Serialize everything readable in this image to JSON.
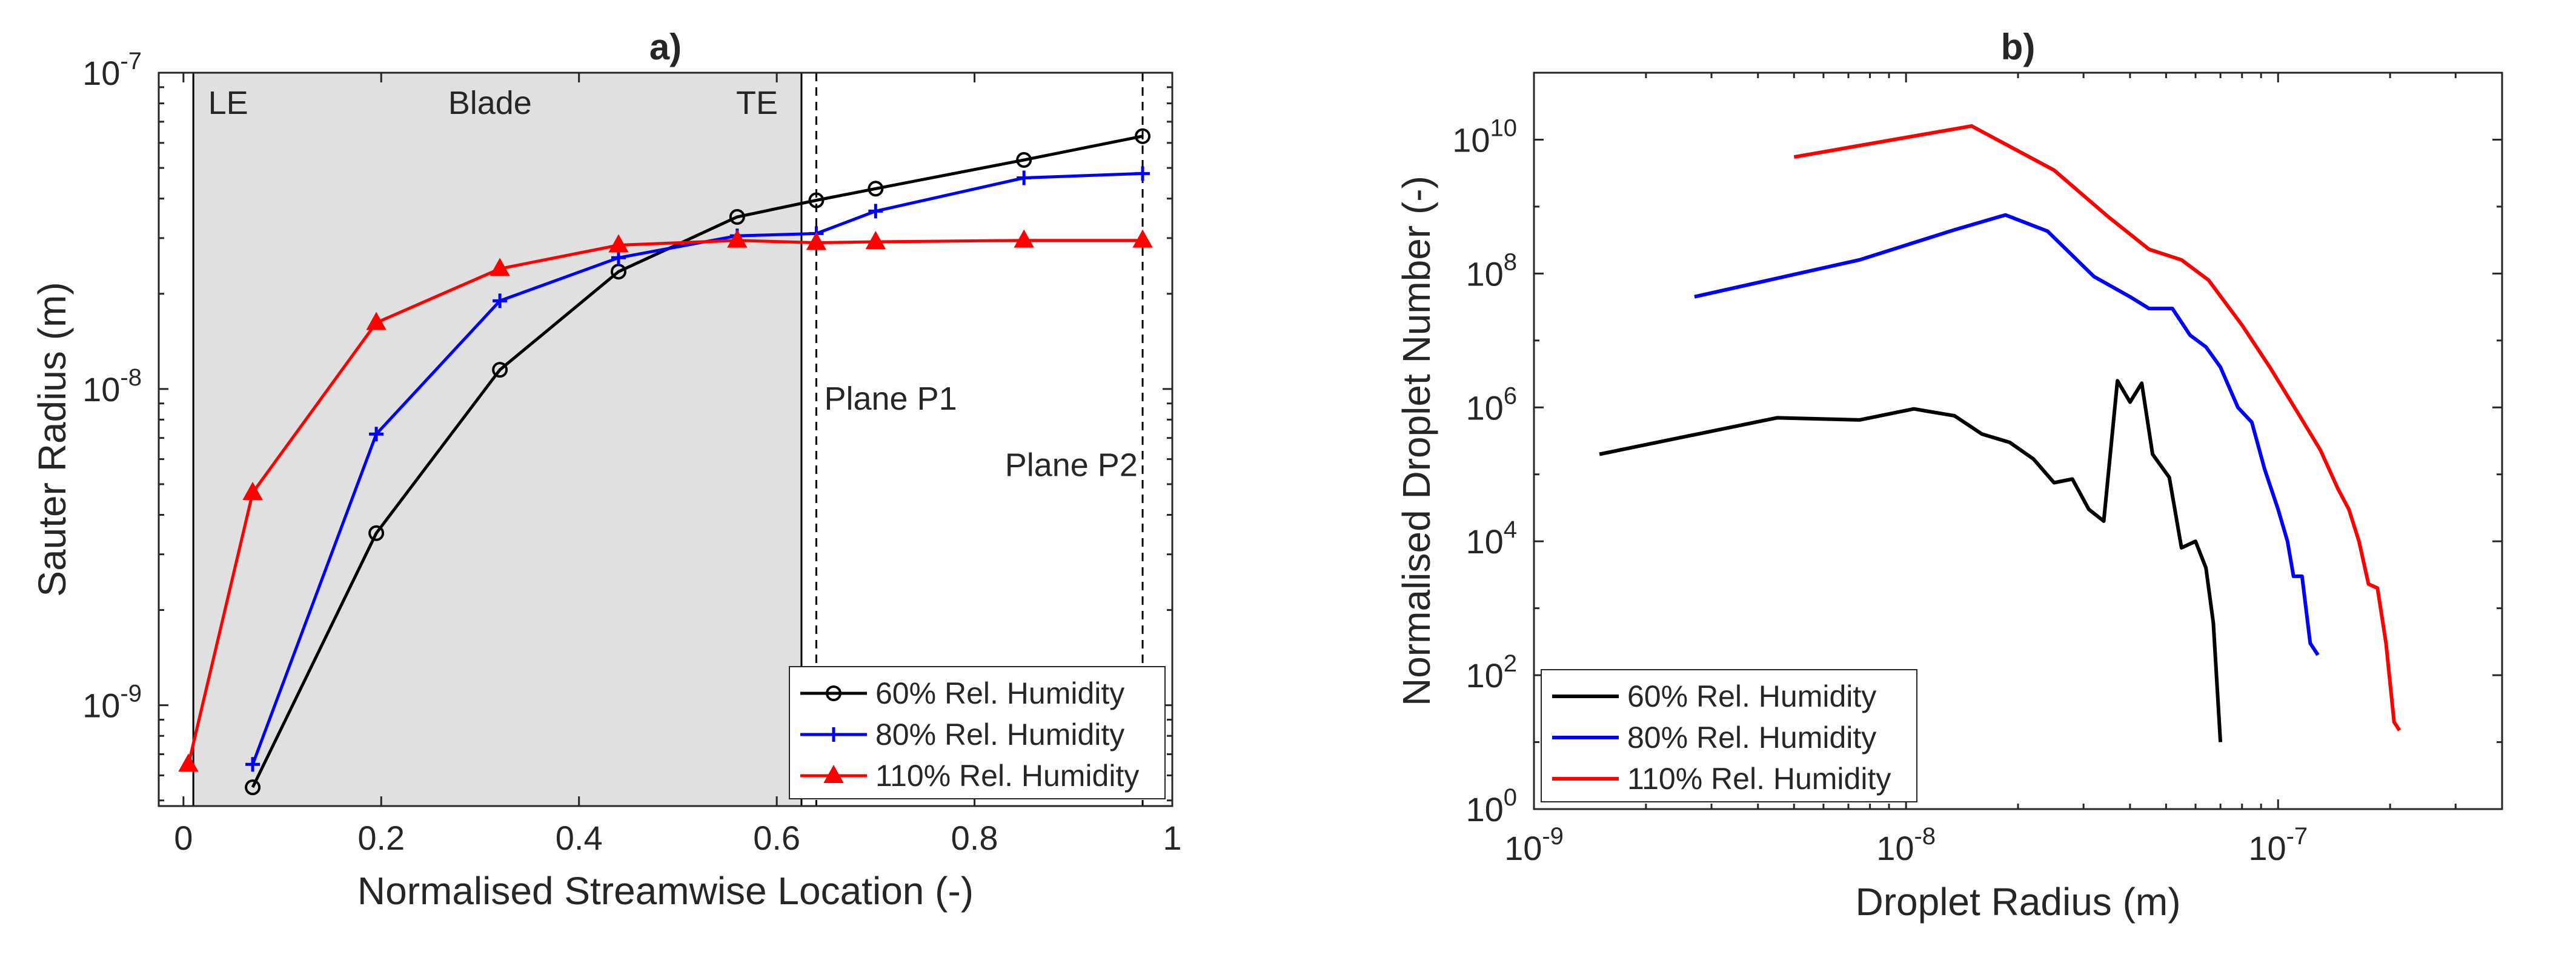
{
  "chart_data": [
    {
      "type": "line",
      "title": "a)",
      "xlabel": "Normalised Streamwise Location (-)",
      "ylabel": "Sauter Radius (m)",
      "xscale": "linear",
      "yscale": "log",
      "xlim": [
        -0.025,
        1.0
      ],
      "ylim": [
        4.8e-10,
        1e-07
      ],
      "xticks": [
        0,
        0.2,
        0.4,
        0.6,
        0.8,
        1
      ],
      "xtick_labels": [
        "0",
        "0.2",
        "0.4",
        "0.6",
        "0.8",
        "1"
      ],
      "yticks": [
        1e-09,
        1e-08,
        1e-07
      ],
      "ytick_labels": [
        {
          "base": "10",
          "exp": "-9"
        },
        {
          "base": "10",
          "exp": "-8"
        },
        {
          "base": "10",
          "exp": "-7"
        }
      ],
      "shaded_region": {
        "x0": 0.01,
        "x1": 0.625,
        "color": "#e0e0e0"
      },
      "vlines_solid": [
        0.01,
        0.625
      ],
      "vlines_dashed": [
        0.64,
        0.97
      ],
      "annotations": [
        {
          "text": "LE",
          "x": 0.025,
          "y": 7.4e-08,
          "anchor": "start"
        },
        {
          "text": "Blade",
          "x": 0.31,
          "y": 7.4e-08,
          "anchor": "middle"
        },
        {
          "text": "TE",
          "x": 0.58,
          "y": 7.4e-08,
          "anchor": "middle"
        },
        {
          "text": "Plane P1",
          "x": 0.648,
          "y": 8.6e-09,
          "anchor": "start"
        },
        {
          "text": "Plane P2",
          "x": 0.965,
          "y": 5.3e-09,
          "anchor": "end"
        }
      ],
      "legend_position": "bottom-right",
      "series": [
        {
          "name": "60% Rel. Humidity",
          "color": "#000000",
          "marker": "circle",
          "x": [
            0.07,
            0.195,
            0.32,
            0.44,
            0.56,
            0.64,
            0.7,
            0.85,
            0.97
          ],
          "y": [
            5.5e-10,
            3.5e-09,
            1.15e-08,
            2.35e-08,
            3.5e-08,
            3.95e-08,
            4.3e-08,
            5.3e-08,
            6.3e-08
          ]
        },
        {
          "name": "80% Rel. Humidity",
          "color": "#0000ff",
          "marker": "plus",
          "x": [
            0.07,
            0.195,
            0.32,
            0.44,
            0.56,
            0.64,
            0.7,
            0.85,
            0.97
          ],
          "y": [
            6.5e-10,
            7.2e-09,
            1.9e-08,
            2.6e-08,
            3.05e-08,
            3.1e-08,
            3.65e-08,
            4.65e-08,
            4.8e-08
          ]
        },
        {
          "name": "110% Rel. Humidity",
          "color": "#ff0000",
          "marker": "triangle",
          "x": [
            0.005,
            0.07,
            0.195,
            0.32,
            0.44,
            0.56,
            0.64,
            0.7,
            0.85,
            0.97
          ],
          "y": [
            6.5e-10,
            4.7e-09,
            1.62e-08,
            2.4e-08,
            2.85e-08,
            2.95e-08,
            2.9e-08,
            2.92e-08,
            2.95e-08,
            2.95e-08
          ]
        }
      ]
    },
    {
      "type": "line",
      "title": "b)",
      "xlabel": "Droplet Radius (m)",
      "ylabel": "Normalised Droplet Number (-)",
      "xscale": "log",
      "yscale": "log",
      "xlim": [
        1e-09,
        4e-07
      ],
      "ylim": [
        1,
        100000000000.0
      ],
      "xticks": [
        1e-09,
        1e-08,
        1e-07
      ],
      "xtick_labels": [
        {
          "base": "10",
          "exp": "-9"
        },
        {
          "base": "10",
          "exp": "-8"
        },
        {
          "base": "10",
          "exp": "-7"
        }
      ],
      "yticks": [
        1,
        100,
        10000,
        1000000,
        100000000,
        10000000000
      ],
      "ytick_labels": [
        {
          "base": "10",
          "exp": "0"
        },
        {
          "base": "10",
          "exp": "2"
        },
        {
          "base": "10",
          "exp": "4"
        },
        {
          "base": "10",
          "exp": "6"
        },
        {
          "base": "10",
          "exp": "8"
        },
        {
          "base": "10",
          "exp": "10"
        }
      ],
      "legend_position": "bottom-left",
      "series": [
        {
          "name": "60% Rel. Humidity",
          "color": "#000000",
          "x": [
            1.5e-09,
            4.5e-09,
            7.5e-09,
            1.05e-08,
            1.35e-08,
            1.6e-08,
            1.9e-08,
            2.2e-08,
            2.5e-08,
            2.8e-08,
            3.1e-08,
            3.4e-08,
            3.7e-08,
            4e-08,
            4.3e-08,
            4.6e-08,
            5.1e-08,
            5.5e-08,
            6e-08,
            6.4e-08,
            6.7e-08,
            7e-08
          ],
          "y": [
            200000,
            700000,
            650000,
            950000,
            750000,
            400000,
            300000,
            170000,
            75000,
            85000,
            30000,
            20000,
            2500000,
            1200000,
            2300000,
            200000,
            90000,
            8000,
            10000,
            4000,
            600,
            10
          ]
        },
        {
          "name": "80% Rel. Humidity",
          "color": "#0000ff",
          "x": [
            2.7e-09,
            7.5e-09,
            1.35e-08,
            1.85e-08,
            2.4e-08,
            3.2e-08,
            4e-08,
            4.5e-08,
            5.2e-08,
            5.8e-08,
            6.4e-08,
            7e-08,
            7.8e-08,
            8.5e-08,
            9.2e-08,
            1e-07,
            1.06e-07,
            1.1e-07,
            1.16e-07,
            1.22e-07,
            1.28e-07
          ],
          "y": [
            45000000,
            160000000,
            450000000,
            750000000,
            430000000,
            90000000,
            45000000,
            30000000,
            30000000,
            12000000,
            8000000,
            4000000,
            1000000,
            600000,
            120000,
            30000,
            10000,
            3000,
            3000,
            300,
            200
          ]
        },
        {
          "name": "110% Rel. Humidity",
          "color": "#ff0000",
          "x": [
            5e-09,
            1.5e-08,
            2.5e-08,
            3.5e-08,
            4.5e-08,
            5.5e-08,
            6.5e-08,
            8e-08,
            9.5e-08,
            1.12e-07,
            1.3e-07,
            1.45e-07,
            1.55e-07,
            1.65e-07,
            1.75e-07,
            1.85e-07,
            1.95e-07,
            2.05e-07,
            2.12e-07
          ],
          "y": [
            5500000000,
            16000000000,
            3500000000,
            700000000,
            230000000,
            160000000,
            80000000,
            17000000,
            4000000,
            900000,
            230000,
            60000,
            30000,
            10000,
            2300,
            2000,
            300,
            20,
            15
          ]
        }
      ]
    }
  ]
}
